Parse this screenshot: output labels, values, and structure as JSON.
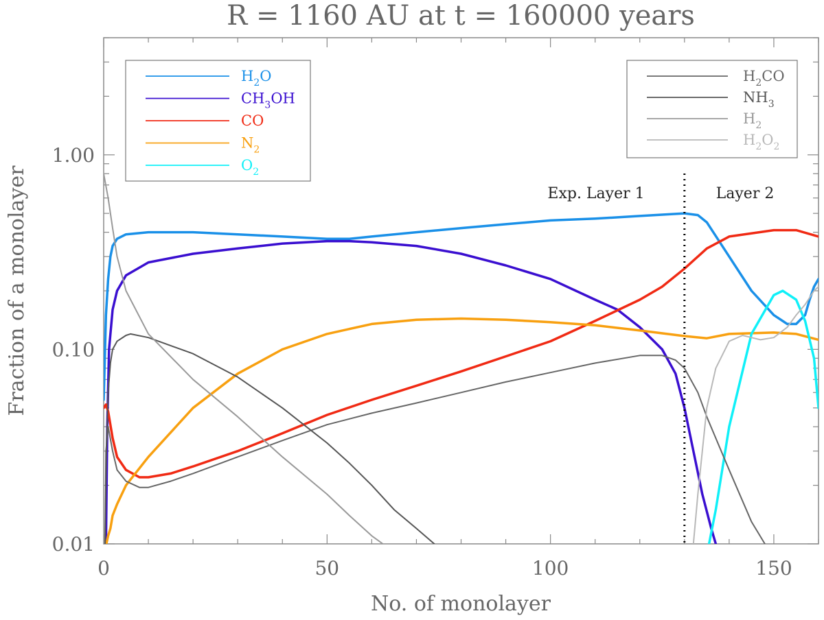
{
  "chart_data": {
    "type": "line",
    "title": "R = 1160 AU at t = 160000 years",
    "xlabel": "No. of monolayer",
    "ylabel": "Fraction of a monolayer",
    "xlim": [
      0,
      160
    ],
    "ylim": [
      0.01,
      4.0
    ],
    "yscale": "log",
    "xticks": [
      0,
      50,
      100,
      150
    ],
    "xtick_labels": [
      "0",
      "50",
      "100",
      "150"
    ],
    "yticks": [
      0.01,
      0.1,
      1.0
    ],
    "ytick_labels": [
      "0.01",
      "0.10",
      "1.00"
    ],
    "grid": false,
    "legend_placement": [
      "top-left",
      "top-right"
    ],
    "annotations": [
      {
        "text": "Exp. Layer 1"
      },
      {
        "text": "Layer 2"
      }
    ],
    "vline": {
      "x": 130,
      "style": "dotted",
      "color": "#000000"
    },
    "series": [
      {
        "name": "H2O",
        "label_main": "H",
        "label_sub": "2",
        "label_tail": "O",
        "legend": "left",
        "color": "#1a90e8",
        "width": 3.5,
        "x": [
          0,
          0.5,
          1,
          1.5,
          2,
          3,
          5,
          10,
          20,
          30,
          40,
          50,
          55,
          60,
          70,
          80,
          90,
          100,
          110,
          120,
          130,
          133,
          135,
          140,
          145,
          150,
          153,
          155,
          157,
          158,
          159,
          160
        ],
        "y": [
          0.055,
          0.15,
          0.23,
          0.3,
          0.34,
          0.37,
          0.39,
          0.4,
          0.4,
          0.39,
          0.38,
          0.37,
          0.37,
          0.38,
          0.4,
          0.42,
          0.44,
          0.46,
          0.47,
          0.485,
          0.5,
          0.49,
          0.45,
          0.3,
          0.2,
          0.15,
          0.135,
          0.135,
          0.15,
          0.18,
          0.21,
          0.23
        ]
      },
      {
        "name": "CH3OH",
        "label_main": "CH",
        "label_sub": "3",
        "label_tail": "OH",
        "legend": "left",
        "color": "#3a0fd0",
        "width": 3.5,
        "x": [
          0.5,
          0.8,
          1.2,
          2,
          3,
          5,
          10,
          20,
          30,
          40,
          50,
          55,
          60,
          70,
          80,
          90,
          100,
          110,
          115,
          120,
          125,
          128,
          130,
          132,
          134,
          136,
          137
        ],
        "y": [
          0.01,
          0.04,
          0.1,
          0.16,
          0.2,
          0.24,
          0.28,
          0.31,
          0.33,
          0.35,
          0.36,
          0.36,
          0.355,
          0.34,
          0.31,
          0.27,
          0.23,
          0.18,
          0.16,
          0.13,
          0.1,
          0.075,
          0.05,
          0.03,
          0.018,
          0.012,
          0.01
        ]
      },
      {
        "name": "CO",
        "label_main": "CO",
        "label_sub": "",
        "label_tail": "",
        "legend": "left",
        "color": "#f02a14",
        "width": 3.5,
        "x": [
          0,
          0.5,
          1,
          2,
          3,
          5,
          8,
          10,
          15,
          20,
          30,
          40,
          50,
          60,
          70,
          80,
          90,
          100,
          110,
          120,
          125,
          130,
          135,
          140,
          150,
          155,
          160
        ],
        "y": [
          0.05,
          0.052,
          0.048,
          0.035,
          0.028,
          0.024,
          0.022,
          0.022,
          0.023,
          0.025,
          0.03,
          0.037,
          0.046,
          0.055,
          0.065,
          0.077,
          0.092,
          0.11,
          0.14,
          0.18,
          0.21,
          0.26,
          0.33,
          0.38,
          0.41,
          0.41,
          0.38
        ]
      },
      {
        "name": "N2",
        "label_main": "N",
        "label_sub": "2",
        "label_tail": "",
        "legend": "left",
        "color": "#f8a010",
        "width": 3.5,
        "x": [
          0.6,
          1,
          1.5,
          2,
          3,
          5,
          10,
          20,
          30,
          40,
          50,
          60,
          70,
          80,
          90,
          100,
          110,
          120,
          130,
          135,
          140,
          150,
          155,
          160
        ],
        "y": [
          0.01,
          0.011,
          0.012,
          0.014,
          0.016,
          0.02,
          0.028,
          0.05,
          0.075,
          0.1,
          0.12,
          0.135,
          0.142,
          0.144,
          0.142,
          0.138,
          0.133,
          0.125,
          0.117,
          0.114,
          0.12,
          0.122,
          0.12,
          0.112
        ]
      },
      {
        "name": "O2",
        "label_main": "O",
        "label_sub": "2",
        "label_tail": "",
        "legend": "left",
        "color": "#10f0f8",
        "width": 3.5,
        "x": [
          135.5,
          137,
          140,
          145,
          150,
          152,
          155,
          157,
          159,
          160
        ],
        "y": [
          0.01,
          0.015,
          0.04,
          0.12,
          0.19,
          0.2,
          0.18,
          0.14,
          0.09,
          0.05
        ]
      },
      {
        "name": "H2CO",
        "label_main": "H",
        "label_sub": "2",
        "label_tail": "CO",
        "legend": "right",
        "color": "#666666",
        "width": 2,
        "x": [
          0.3,
          0.5,
          1,
          2,
          3,
          5,
          8,
          10,
          15,
          20,
          30,
          40,
          50,
          60,
          70,
          80,
          90,
          100,
          110,
          120,
          125,
          128,
          130,
          133,
          135,
          140,
          145,
          148
        ],
        "y": [
          0.01,
          0.03,
          0.04,
          0.03,
          0.024,
          0.021,
          0.0195,
          0.0195,
          0.021,
          0.023,
          0.028,
          0.034,
          0.041,
          0.047,
          0.053,
          0.06,
          0.068,
          0.076,
          0.085,
          0.093,
          0.093,
          0.088,
          0.08,
          0.06,
          0.045,
          0.024,
          0.013,
          0.01
        ]
      },
      {
        "name": "NH3",
        "label_main": "NH",
        "label_sub": "3",
        "label_tail": "",
        "legend": "right",
        "color": "#555555",
        "width": 2,
        "x": [
          0.3,
          0.6,
          1,
          1.5,
          2,
          3,
          5,
          6,
          10,
          20,
          30,
          40,
          50,
          55,
          60,
          65,
          70,
          74
        ],
        "y": [
          0.01,
          0.03,
          0.06,
          0.085,
          0.1,
          0.11,
          0.118,
          0.12,
          0.115,
          0.095,
          0.072,
          0.05,
          0.033,
          0.026,
          0.02,
          0.015,
          0.012,
          0.01
        ]
      },
      {
        "name": "H2",
        "label_main": "H",
        "label_sub": "2",
        "label_tail": "",
        "legend": "right",
        "color": "#999999",
        "width": 2,
        "x": [
          0,
          1,
          2,
          3,
          5,
          10,
          20,
          30,
          40,
          50,
          55,
          60,
          62.5
        ],
        "y": [
          0.8,
          0.6,
          0.42,
          0.3,
          0.2,
          0.12,
          0.07,
          0.045,
          0.028,
          0.018,
          0.014,
          0.011,
          0.01
        ]
      },
      {
        "name": "H2O2",
        "label_main": "H",
        "label_sub": "2",
        "label_tail": "O",
        "label_sub2": "2",
        "legend": "right",
        "color": "#b8b8b8",
        "width": 2,
        "x": [
          132,
          133,
          134,
          135,
          137,
          140,
          143,
          145,
          147,
          150,
          153,
          155,
          157,
          159,
          160
        ],
        "y": [
          0.01,
          0.018,
          0.03,
          0.05,
          0.08,
          0.11,
          0.118,
          0.115,
          0.112,
          0.115,
          0.13,
          0.15,
          0.17,
          0.2,
          0.21
        ]
      }
    ]
  }
}
